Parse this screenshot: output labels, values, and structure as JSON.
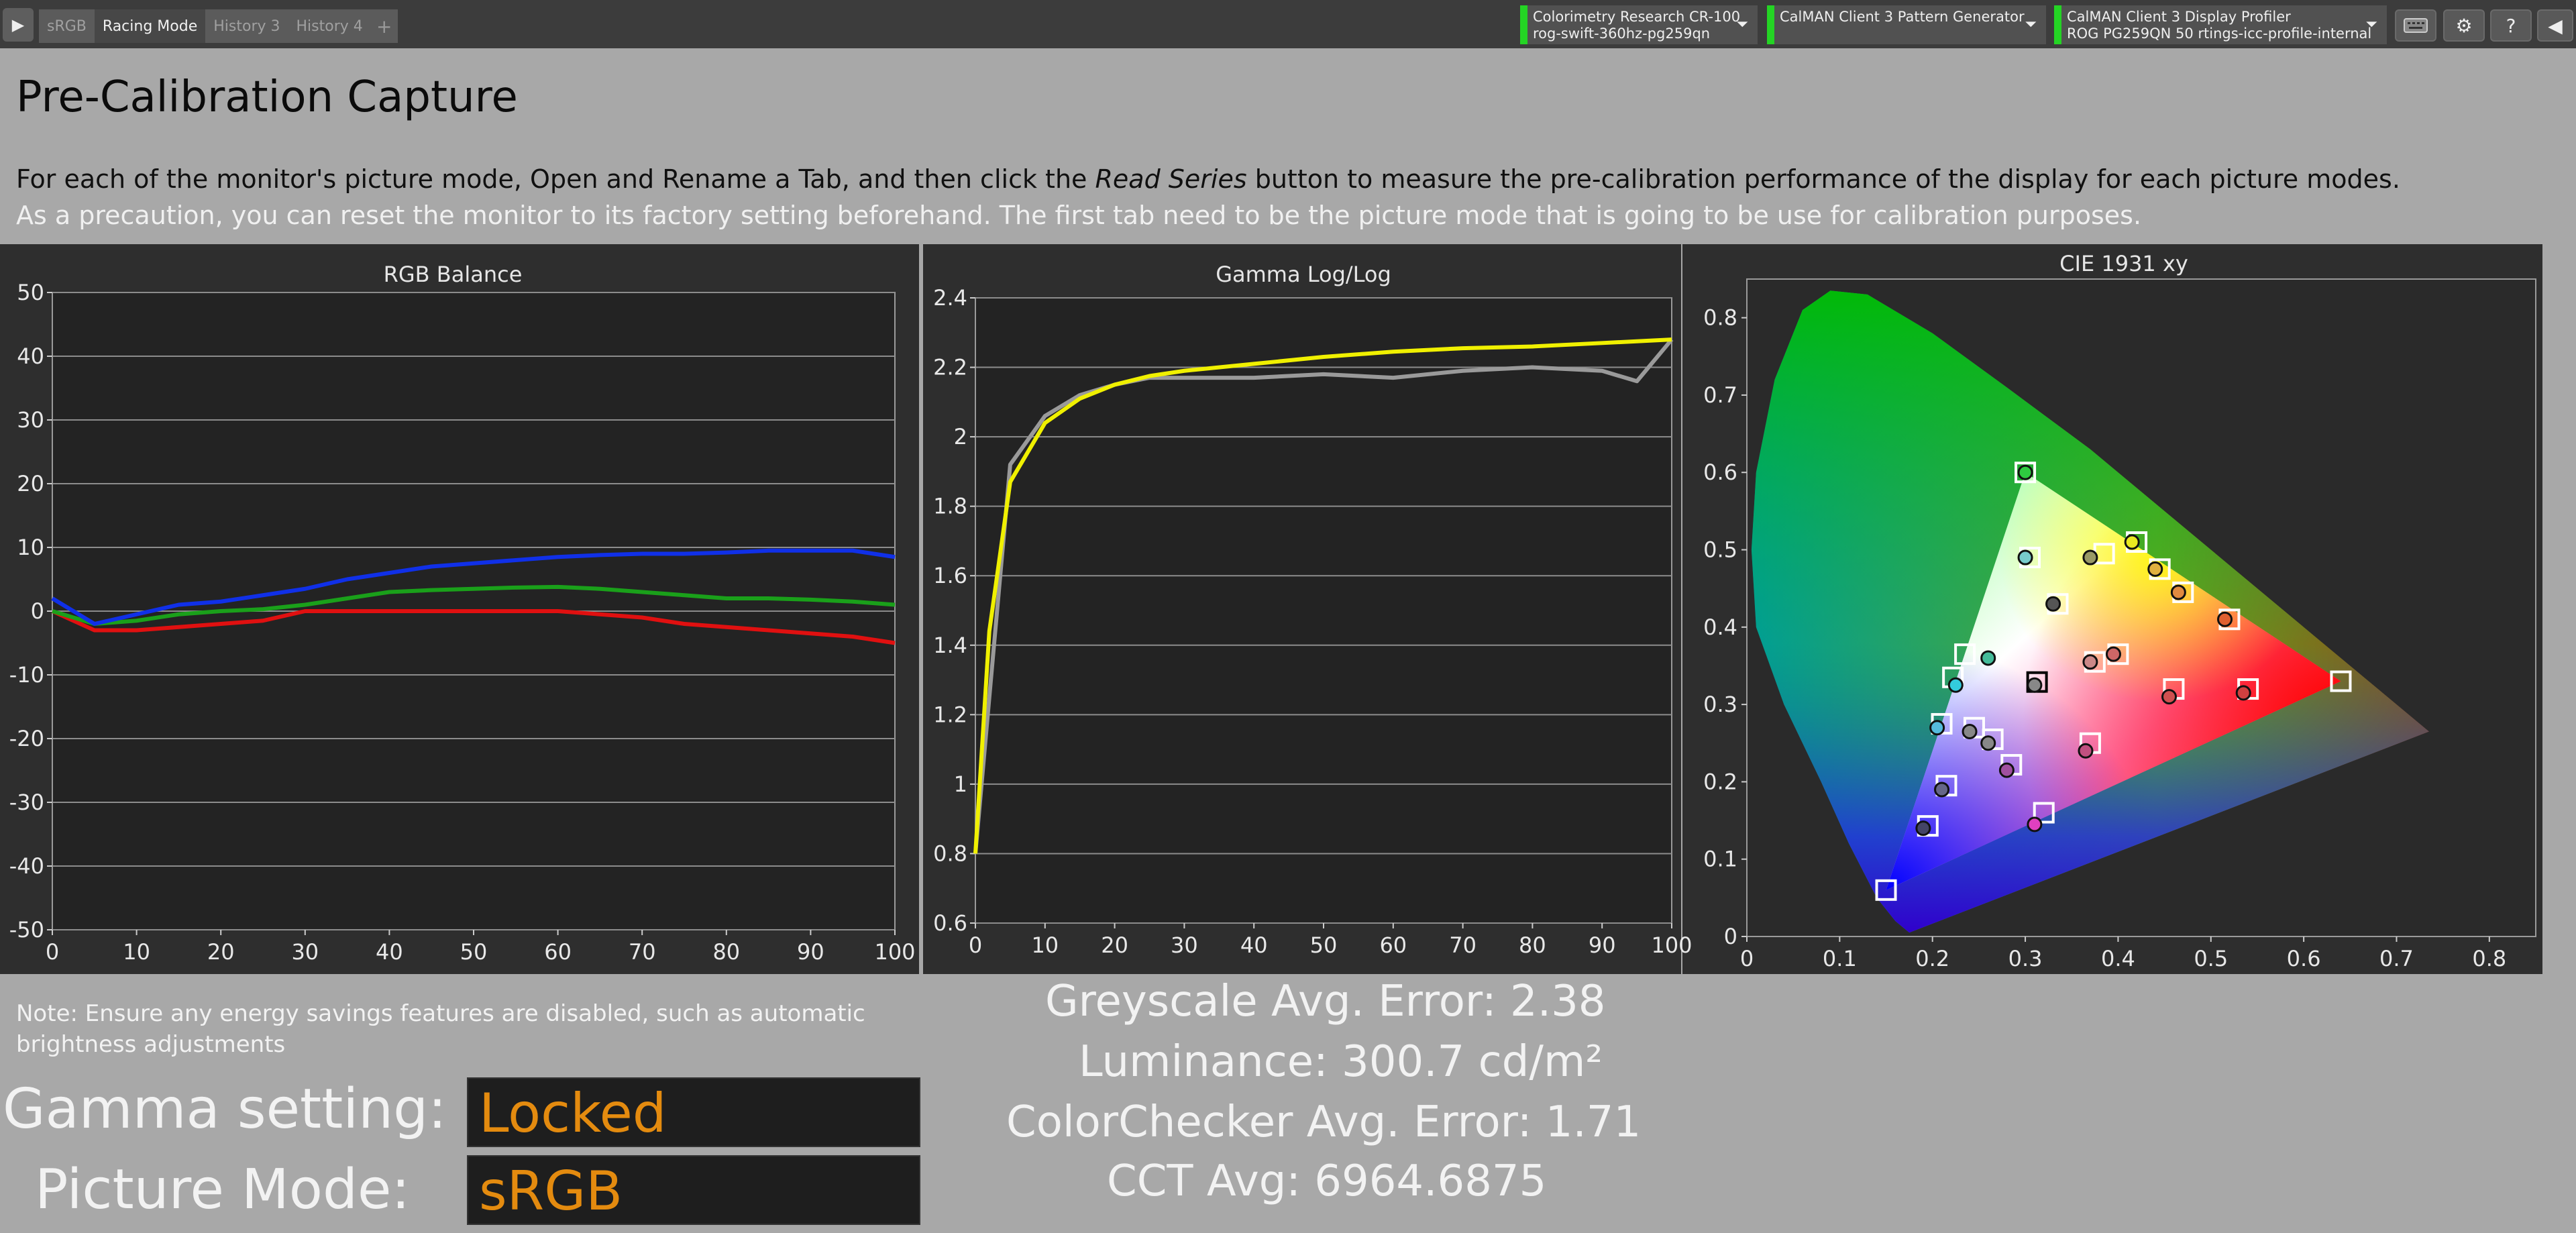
{
  "tabs": [
    "sRGB",
    "Racing Mode",
    "History 3",
    "History 4"
  ],
  "tab_add": "+",
  "devices": [
    {
      "title": "Colorimetry Research CR-100",
      "subtitle": "rog-swift-360hz-pg259qn"
    },
    {
      "title": "CalMAN Client 3 Pattern Generator",
      "subtitle": ""
    },
    {
      "title": "CalMAN Client 3 Display Profiler",
      "subtitle": "ROG PG259QN 50 rtings-icc-profile-internal"
    }
  ],
  "status_color": "#24d424",
  "page_title": "Pre-Calibration Capture",
  "instructions": {
    "part1": "For each of the monitor's picture mode, Open and Rename a Tab, and then click the ",
    "emph": "Read Series",
    "part2": " button to measure the pre-calibration performance of the display for each picture modes. ",
    "part3": "As a precaution, you can reset the monitor to its factory setting beforehand. The first tab need to be the picture mode that is going to be use for calibration purposes."
  },
  "note": "Note: Ensure any energy savings features are disabled, such as automatic brightness adjustments",
  "gamma_label": "Gamma setting:",
  "gamma_value": "Locked",
  "picture_mode_label": "Picture Mode:",
  "picture_mode_value": "sRGB",
  "value_color": "#e48b0f",
  "stats": {
    "greyscale": "Greyscale Avg. Error: 2.38",
    "luminance": "Luminance: 300.7 cd/m²",
    "colorchecker": "ColorChecker Avg. Error: 1.71",
    "cct": "CCT Avg: 6964.6875"
  },
  "chart_data": [
    {
      "type": "line",
      "title": "RGB Balance",
      "x": [
        0,
        5,
        10,
        15,
        20,
        25,
        30,
        35,
        40,
        45,
        50,
        55,
        60,
        65,
        70,
        75,
        80,
        85,
        90,
        95,
        100
      ],
      "xlim": [
        0,
        100
      ],
      "ylim": [
        -50,
        50
      ],
      "xticks": [
        0,
        10,
        20,
        30,
        40,
        50,
        60,
        70,
        80,
        90,
        100
      ],
      "yticks": [
        50,
        40,
        30,
        20,
        10,
        0,
        -10,
        -20,
        -30,
        -40,
        -50
      ],
      "series": [
        {
          "color": "#e01010",
          "values": [
            0,
            -3,
            -3,
            -2.5,
            -2,
            -1.5,
            0,
            0,
            0,
            0,
            0,
            0,
            0,
            -0.5,
            -1,
            -2,
            -2.5,
            -3,
            -3.5,
            -4,
            -5
          ]
        },
        {
          "color": "#1aa01a",
          "values": [
            0,
            -2,
            -1.5,
            -0.5,
            0,
            0.3,
            1,
            2,
            3,
            3.3,
            3.5,
            3.7,
            3.8,
            3.5,
            3,
            2.5,
            2,
            2,
            1.8,
            1.5,
            1
          ]
        },
        {
          "color": "#1030e8",
          "values": [
            2,
            -2,
            -0.5,
            1,
            1.5,
            2.5,
            3.5,
            5,
            6,
            7,
            7.5,
            8,
            8.5,
            8.8,
            9,
            9,
            9.2,
            9.5,
            9.5,
            9.5,
            8.5
          ]
        }
      ],
      "grid": true
    },
    {
      "type": "line",
      "title": "Gamma Log/Log",
      "x": [
        0,
        2,
        5,
        10,
        15,
        20,
        25,
        30,
        40,
        50,
        60,
        70,
        80,
        90,
        95,
        100
      ],
      "xlim": [
        0,
        100
      ],
      "ylim": [
        0.6,
        2.4
      ],
      "xticks": [
        0,
        10,
        20,
        30,
        40,
        50,
        60,
        70,
        80,
        90,
        100
      ],
      "yticks": [
        2.4,
        2.2,
        2,
        1.8,
        1.6,
        1.4,
        1.2,
        1,
        0.8,
        0.6
      ],
      "series": [
        {
          "color": "#9a9a9a",
          "values": [
            0.8,
            1.25,
            1.92,
            2.06,
            2.12,
            2.15,
            2.17,
            2.17,
            2.17,
            2.18,
            2.17,
            2.19,
            2.2,
            2.19,
            2.16,
            2.28
          ]
        },
        {
          "color": "#f0f000",
          "values": [
            0.8,
            1.44,
            1.87,
            2.04,
            2.11,
            2.15,
            2.175,
            2.19,
            2.21,
            2.23,
            2.245,
            2.255,
            2.26,
            2.27,
            2.275,
            2.28
          ]
        }
      ],
      "grid": true
    },
    {
      "type": "scatter",
      "title": "CIE 1931 xy",
      "xlim": [
        0,
        0.85
      ],
      "ylim": [
        0,
        0.85
      ],
      "xticks": [
        0,
        0.1,
        0.2,
        0.3,
        0.4,
        0.5,
        0.6,
        0.7,
        0.8
      ],
      "yticks": [
        0.8,
        0.7,
        0.6,
        0.5,
        0.4,
        0.3,
        0.2,
        0.1,
        0
      ],
      "gamut": [
        [
          0.64,
          0.33
        ],
        [
          0.3,
          0.6
        ],
        [
          0.15,
          0.06
        ]
      ],
      "targets": [
        [
          0.64,
          0.33
        ],
        [
          0.3,
          0.6
        ],
        [
          0.15,
          0.06
        ],
        [
          0.3127,
          0.329
        ],
        [
          0.305,
          0.49
        ],
        [
          0.385,
          0.495
        ],
        [
          0.42,
          0.51
        ],
        [
          0.445,
          0.475
        ],
        [
          0.47,
          0.445
        ],
        [
          0.52,
          0.41
        ],
        [
          0.335,
          0.43
        ],
        [
          0.235,
          0.365
        ],
        [
          0.222,
          0.335
        ],
        [
          0.21,
          0.275
        ],
        [
          0.245,
          0.27
        ],
        [
          0.265,
          0.255
        ],
        [
          0.285,
          0.222
        ],
        [
          0.215,
          0.195
        ],
        [
          0.195,
          0.143
        ],
        [
          0.4,
          0.365
        ],
        [
          0.375,
          0.355
        ],
        [
          0.46,
          0.32
        ],
        [
          0.54,
          0.32
        ],
        [
          0.37,
          0.25
        ],
        [
          0.32,
          0.16
        ]
      ],
      "measured": [
        {
          "x": 0.3,
          "y": 0.6,
          "color": "#2ecc40"
        },
        {
          "x": 0.3,
          "y": 0.49,
          "color": "#7cc"
        },
        {
          "x": 0.37,
          "y": 0.49,
          "color": "#999966"
        },
        {
          "x": 0.415,
          "y": 0.51,
          "color": "#e8e820"
        },
        {
          "x": 0.44,
          "y": 0.475,
          "color": "#e0b040"
        },
        {
          "x": 0.465,
          "y": 0.445,
          "color": "#e08a40"
        },
        {
          "x": 0.515,
          "y": 0.41,
          "color": "#e06030"
        },
        {
          "x": 0.33,
          "y": 0.43,
          "color": "#555"
        },
        {
          "x": 0.26,
          "y": 0.36,
          "color": "#4b9"
        },
        {
          "x": 0.225,
          "y": 0.325,
          "color": "#3cd"
        },
        {
          "x": 0.31,
          "y": 0.325,
          "color": "#888"
        },
        {
          "x": 0.205,
          "y": 0.27,
          "color": "#5bd"
        },
        {
          "x": 0.24,
          "y": 0.265,
          "color": "#888"
        },
        {
          "x": 0.26,
          "y": 0.25,
          "color": "#888"
        },
        {
          "x": 0.28,
          "y": 0.215,
          "color": "#a050a0"
        },
        {
          "x": 0.21,
          "y": 0.19,
          "color": "#668"
        },
        {
          "x": 0.19,
          "y": 0.14,
          "color": "#446"
        },
        {
          "x": 0.37,
          "y": 0.355,
          "color": "#c88"
        },
        {
          "x": 0.395,
          "y": 0.365,
          "color": "#c66"
        },
        {
          "x": 0.455,
          "y": 0.31,
          "color": "#d05050"
        },
        {
          "x": 0.535,
          "y": 0.315,
          "color": "#d04040"
        },
        {
          "x": 0.365,
          "y": 0.24,
          "color": "#c05080"
        },
        {
          "x": 0.31,
          "y": 0.145,
          "color": "#e040c0"
        }
      ],
      "grid": false
    }
  ]
}
